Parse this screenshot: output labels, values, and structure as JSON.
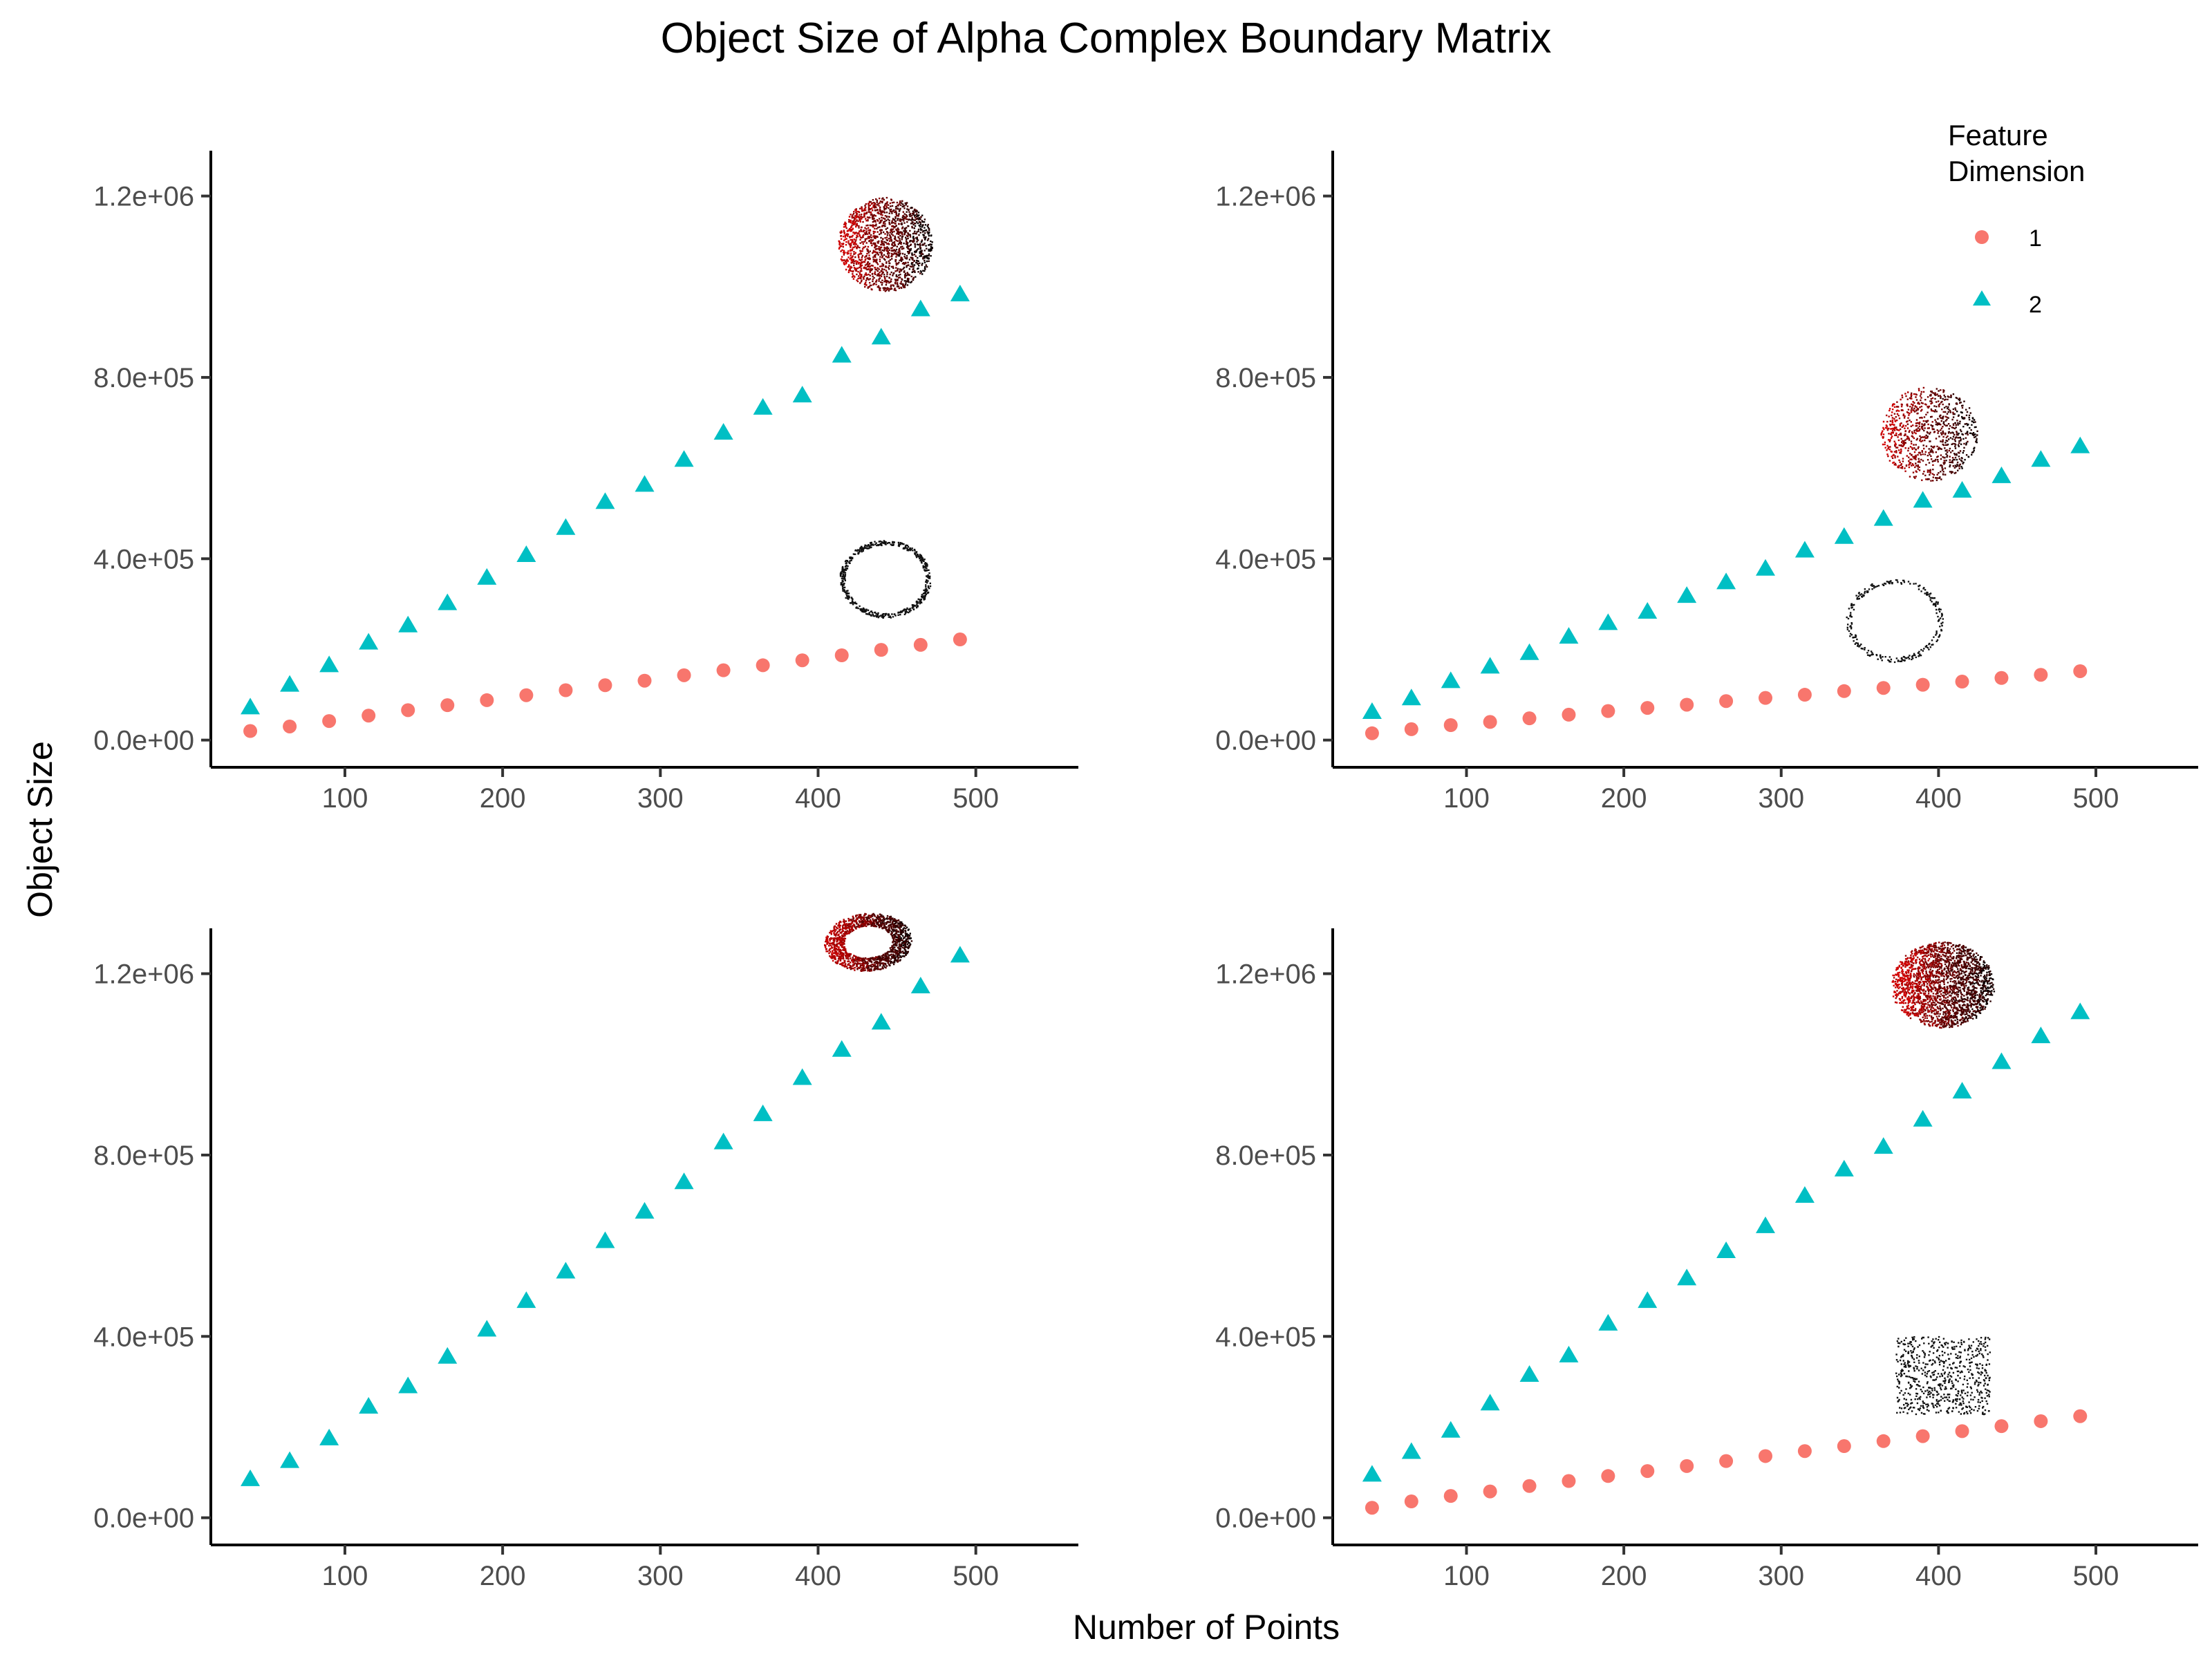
{
  "title": "Object Size of Alpha Complex Boundary Matrix",
  "xlabel": "Number of Points",
  "ylabel": "Object Size",
  "legend": {
    "title_line1": "Feature",
    "title_line2": "Dimension",
    "items": [
      {
        "label": "1",
        "color": "#F8766D",
        "shape": "circle"
      },
      {
        "label": "2",
        "color": "#00BFC4",
        "shape": "triangle"
      }
    ]
  },
  "chart_data": [
    {
      "type": "scatter",
      "panel": "top-left",
      "inset_shape": "sphere (top), circle (bottom)",
      "x": [
        40,
        65,
        90,
        115,
        140,
        165,
        190,
        215,
        240,
        265,
        290,
        315,
        340,
        365,
        390,
        415,
        440,
        465,
        490
      ],
      "series": [
        {
          "name": "1",
          "values": [
            20000,
            30000,
            42000,
            54000,
            66000,
            77000,
            88000,
            99000,
            110000,
            121000,
            131000,
            143000,
            154000,
            165000,
            176000,
            187000,
            199000,
            210000,
            222000
          ]
        },
        {
          "name": "2",
          "values": [
            72000,
            122000,
            165000,
            215000,
            253000,
            302000,
            358000,
            408000,
            468000,
            525000,
            563000,
            618000,
            678000,
            733000,
            760000,
            848000,
            888000,
            950000,
            983000
          ]
        }
      ],
      "xlim": [
        15,
        565
      ],
      "ylim": [
        -60000,
        1300000
      ],
      "xticks": [
        "100",
        "200",
        "300",
        "400",
        "500"
      ],
      "yticks": [
        "0.0e+00",
        "4.0e+05",
        "8.0e+05",
        "1.2e+06"
      ]
    },
    {
      "type": "scatter",
      "panel": "top-right",
      "inset_shape": "sphere (top), circle (bottom)",
      "x": [
        40,
        65,
        90,
        115,
        140,
        165,
        190,
        215,
        240,
        265,
        290,
        315,
        340,
        365,
        390,
        415,
        440,
        465,
        490
      ],
      "series": [
        {
          "name": "1",
          "values": [
            15000,
            24000,
            33000,
            40000,
            48000,
            56000,
            64000,
            71000,
            78000,
            86000,
            93000,
            100000,
            108000,
            115000,
            122000,
            129000,
            137000,
            144000,
            152000
          ]
        },
        {
          "name": "2",
          "values": [
            62000,
            92000,
            130000,
            162000,
            192000,
            228000,
            258000,
            283000,
            318000,
            348000,
            378000,
            418000,
            448000,
            488000,
            528000,
            550000,
            582000,
            618000,
            648000
          ]
        }
      ],
      "xlim": [
        15,
        565
      ],
      "ylim": [
        -60000,
        1300000
      ],
      "xticks": [
        "100",
        "200",
        "300",
        "400",
        "500"
      ],
      "yticks": [
        "0.0e+00",
        "4.0e+05",
        "8.0e+05",
        "1.2e+06"
      ]
    },
    {
      "type": "scatter",
      "panel": "bottom-left",
      "inset_shape": "torus",
      "x": [
        40,
        65,
        90,
        115,
        140,
        165,
        190,
        215,
        240,
        265,
        290,
        315,
        340,
        365,
        390,
        415,
        440,
        465,
        490
      ],
      "series": [
        {
          "name": "2",
          "values": [
            85000,
            125000,
            175000,
            245000,
            290000,
            355000,
            415000,
            478000,
            543000,
            610000,
            675000,
            740000,
            828000,
            890000,
            970000,
            1032000,
            1092000,
            1172000,
            1240000
          ]
        }
      ],
      "xlim": [
        15,
        565
      ],
      "ylim": [
        -60000,
        1300000
      ],
      "xticks": [
        "100",
        "200",
        "300",
        "400",
        "500"
      ],
      "yticks": [
        "0.0e+00",
        "4.0e+05",
        "8.0e+05",
        "1.2e+06"
      ]
    },
    {
      "type": "scatter",
      "panel": "bottom-right",
      "inset_shape": "cube (top), square (bottom)",
      "x": [
        40,
        65,
        90,
        115,
        140,
        165,
        190,
        215,
        240,
        265,
        290,
        315,
        340,
        365,
        390,
        415,
        440,
        465,
        490
      ],
      "series": [
        {
          "name": "1",
          "values": [
            22000,
            36000,
            48000,
            58000,
            70000,
            81000,
            92000,
            103000,
            114000,
            125000,
            136000,
            147000,
            158000,
            169000,
            180000,
            191000,
            202000,
            213000,
            224000
          ]
        },
        {
          "name": "2",
          "values": [
            95000,
            145000,
            192000,
            252000,
            315000,
            358000,
            428000,
            478000,
            528000,
            588000,
            643000,
            710000,
            768000,
            818000,
            878000,
            940000,
            1005000,
            1062000,
            1115000
          ]
        }
      ],
      "xlim": [
        15,
        565
      ],
      "ylim": [
        -60000,
        1300000
      ],
      "xticks": [
        "100",
        "200",
        "300",
        "400",
        "500"
      ],
      "yticks": [
        "0.0e+00",
        "4.0e+05",
        "8.0e+05",
        "1.2e+06"
      ]
    }
  ]
}
